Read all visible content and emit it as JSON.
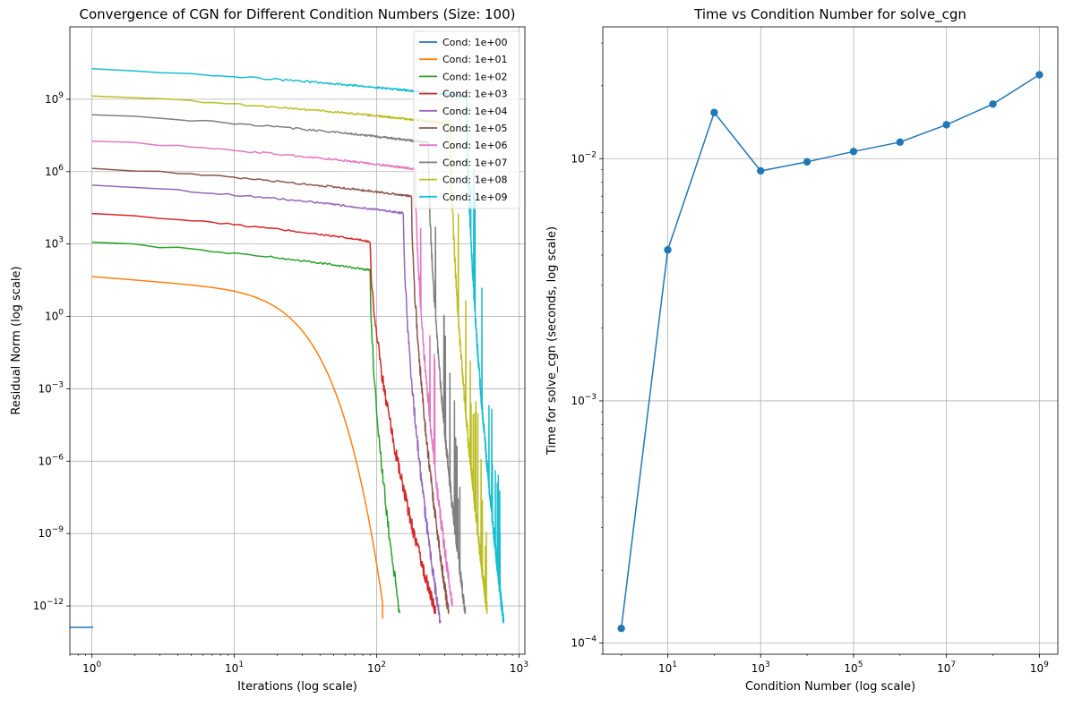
{
  "chart_data": [
    {
      "type": "line",
      "title": "Convergence of CGN for Different Condition Numbers (Size: 100)",
      "xlabel": "Iterations (log scale)",
      "ylabel": "Residual Norm (log scale)",
      "xscale": "log",
      "yscale": "log",
      "xlim": [
        0.7,
        1100
      ],
      "ylim": [
        1e-14,
        1000000000000.0
      ],
      "x_ticks": [
        {
          "value": 1,
          "base": "10",
          "exp": "0"
        },
        {
          "value": 10,
          "base": "10",
          "exp": "1"
        },
        {
          "value": 100,
          "base": "10",
          "exp": "2"
        },
        {
          "value": 1000,
          "base": "10",
          "exp": "3"
        }
      ],
      "y_ticks": [
        {
          "value": 1e-12,
          "base": "10",
          "exp": "−12"
        },
        {
          "value": 1e-09,
          "base": "10",
          "exp": "−9"
        },
        {
          "value": 1e-06,
          "base": "10",
          "exp": "−6"
        },
        {
          "value": 0.001,
          "base": "10",
          "exp": "−3"
        },
        {
          "value": 1,
          "base": "10",
          "exp": "0"
        },
        {
          "value": 1000.0,
          "base": "10",
          "exp": "3"
        },
        {
          "value": 1000000.0,
          "base": "10",
          "exp": "6"
        },
        {
          "value": 1000000000.0,
          "base": "10",
          "exp": "9"
        }
      ],
      "grid": true,
      "legend_position": "top-right",
      "series": [
        {
          "name": "Cond: 1e+00",
          "color": "#1f77b4",
          "start": 1.3e-13,
          "end_iter": 1,
          "final": 1.3e-13
        },
        {
          "name": "Cond: 1e+01",
          "color": "#ff7f0e",
          "start": 45,
          "end_iter": 110,
          "final": 3e-13
        },
        {
          "name": "Cond: 1e+02",
          "color": "#2ca02c",
          "start": 1300,
          "end_iter": 145,
          "final": 5e-13
        },
        {
          "name": "Cond: 1e+03",
          "color": "#d62728",
          "start": 20000.0,
          "end_iter": 260,
          "final": 5e-13
        },
        {
          "name": "Cond: 1e+04",
          "color": "#9467bd",
          "start": 300000.0,
          "end_iter": 280,
          "final": 2e-13
        },
        {
          "name": "Cond: 1e+05",
          "color": "#8c564b",
          "start": 1500000.0,
          "end_iter": 320,
          "final": 5e-13
        },
        {
          "name": "Cond: 1e+06",
          "color": "#e377c2",
          "start": 20000000.0,
          "end_iter": 340,
          "final": 1e-12
        },
        {
          "name": "Cond: 1e+07",
          "color": "#7f7f7f",
          "start": 250000000.0,
          "end_iter": 420,
          "final": 5e-13
        },
        {
          "name": "Cond: 1e+08",
          "color": "#bcbd22",
          "start": 1500000000.0,
          "end_iter": 600,
          "final": 5e-13
        },
        {
          "name": "Cond: 1e+09",
          "color": "#17becf",
          "start": 20000000000.0,
          "end_iter": 780,
          "final": 2e-13
        }
      ]
    },
    {
      "type": "line",
      "title": "Time vs Condition Number for solve_cgn",
      "xlabel": "Condition Number (log scale)",
      "ylabel": "Time for solve_cgn (seconds, log scale)",
      "xscale": "log",
      "yscale": "log",
      "xlim": [
        0.4,
        2500000000.0
      ],
      "ylim": [
        9e-05,
        0.035
      ],
      "x_ticks": [
        {
          "value": 10,
          "base": "10",
          "exp": "1"
        },
        {
          "value": 1000,
          "base": "10",
          "exp": "3"
        },
        {
          "value": 100000,
          "base": "10",
          "exp": "5"
        },
        {
          "value": 10000000,
          "base": "10",
          "exp": "7"
        },
        {
          "value": 1000000000,
          "base": "10",
          "exp": "9"
        }
      ],
      "y_ticks": [
        {
          "value": 0.0001,
          "base": "10",
          "exp": "−4"
        },
        {
          "value": 0.001,
          "base": "10",
          "exp": "−3"
        },
        {
          "value": 0.01,
          "base": "10",
          "exp": "−2"
        }
      ],
      "grid": true,
      "color": "#1f77b4",
      "x": [
        1,
        10,
        100,
        1000,
        10000,
        100000,
        1000000,
        10000000,
        100000000,
        1000000000
      ],
      "y": [
        0.000115,
        0.0042,
        0.0155,
        0.0089,
        0.0097,
        0.0107,
        0.0117,
        0.0138,
        0.0168,
        0.0222
      ]
    }
  ]
}
